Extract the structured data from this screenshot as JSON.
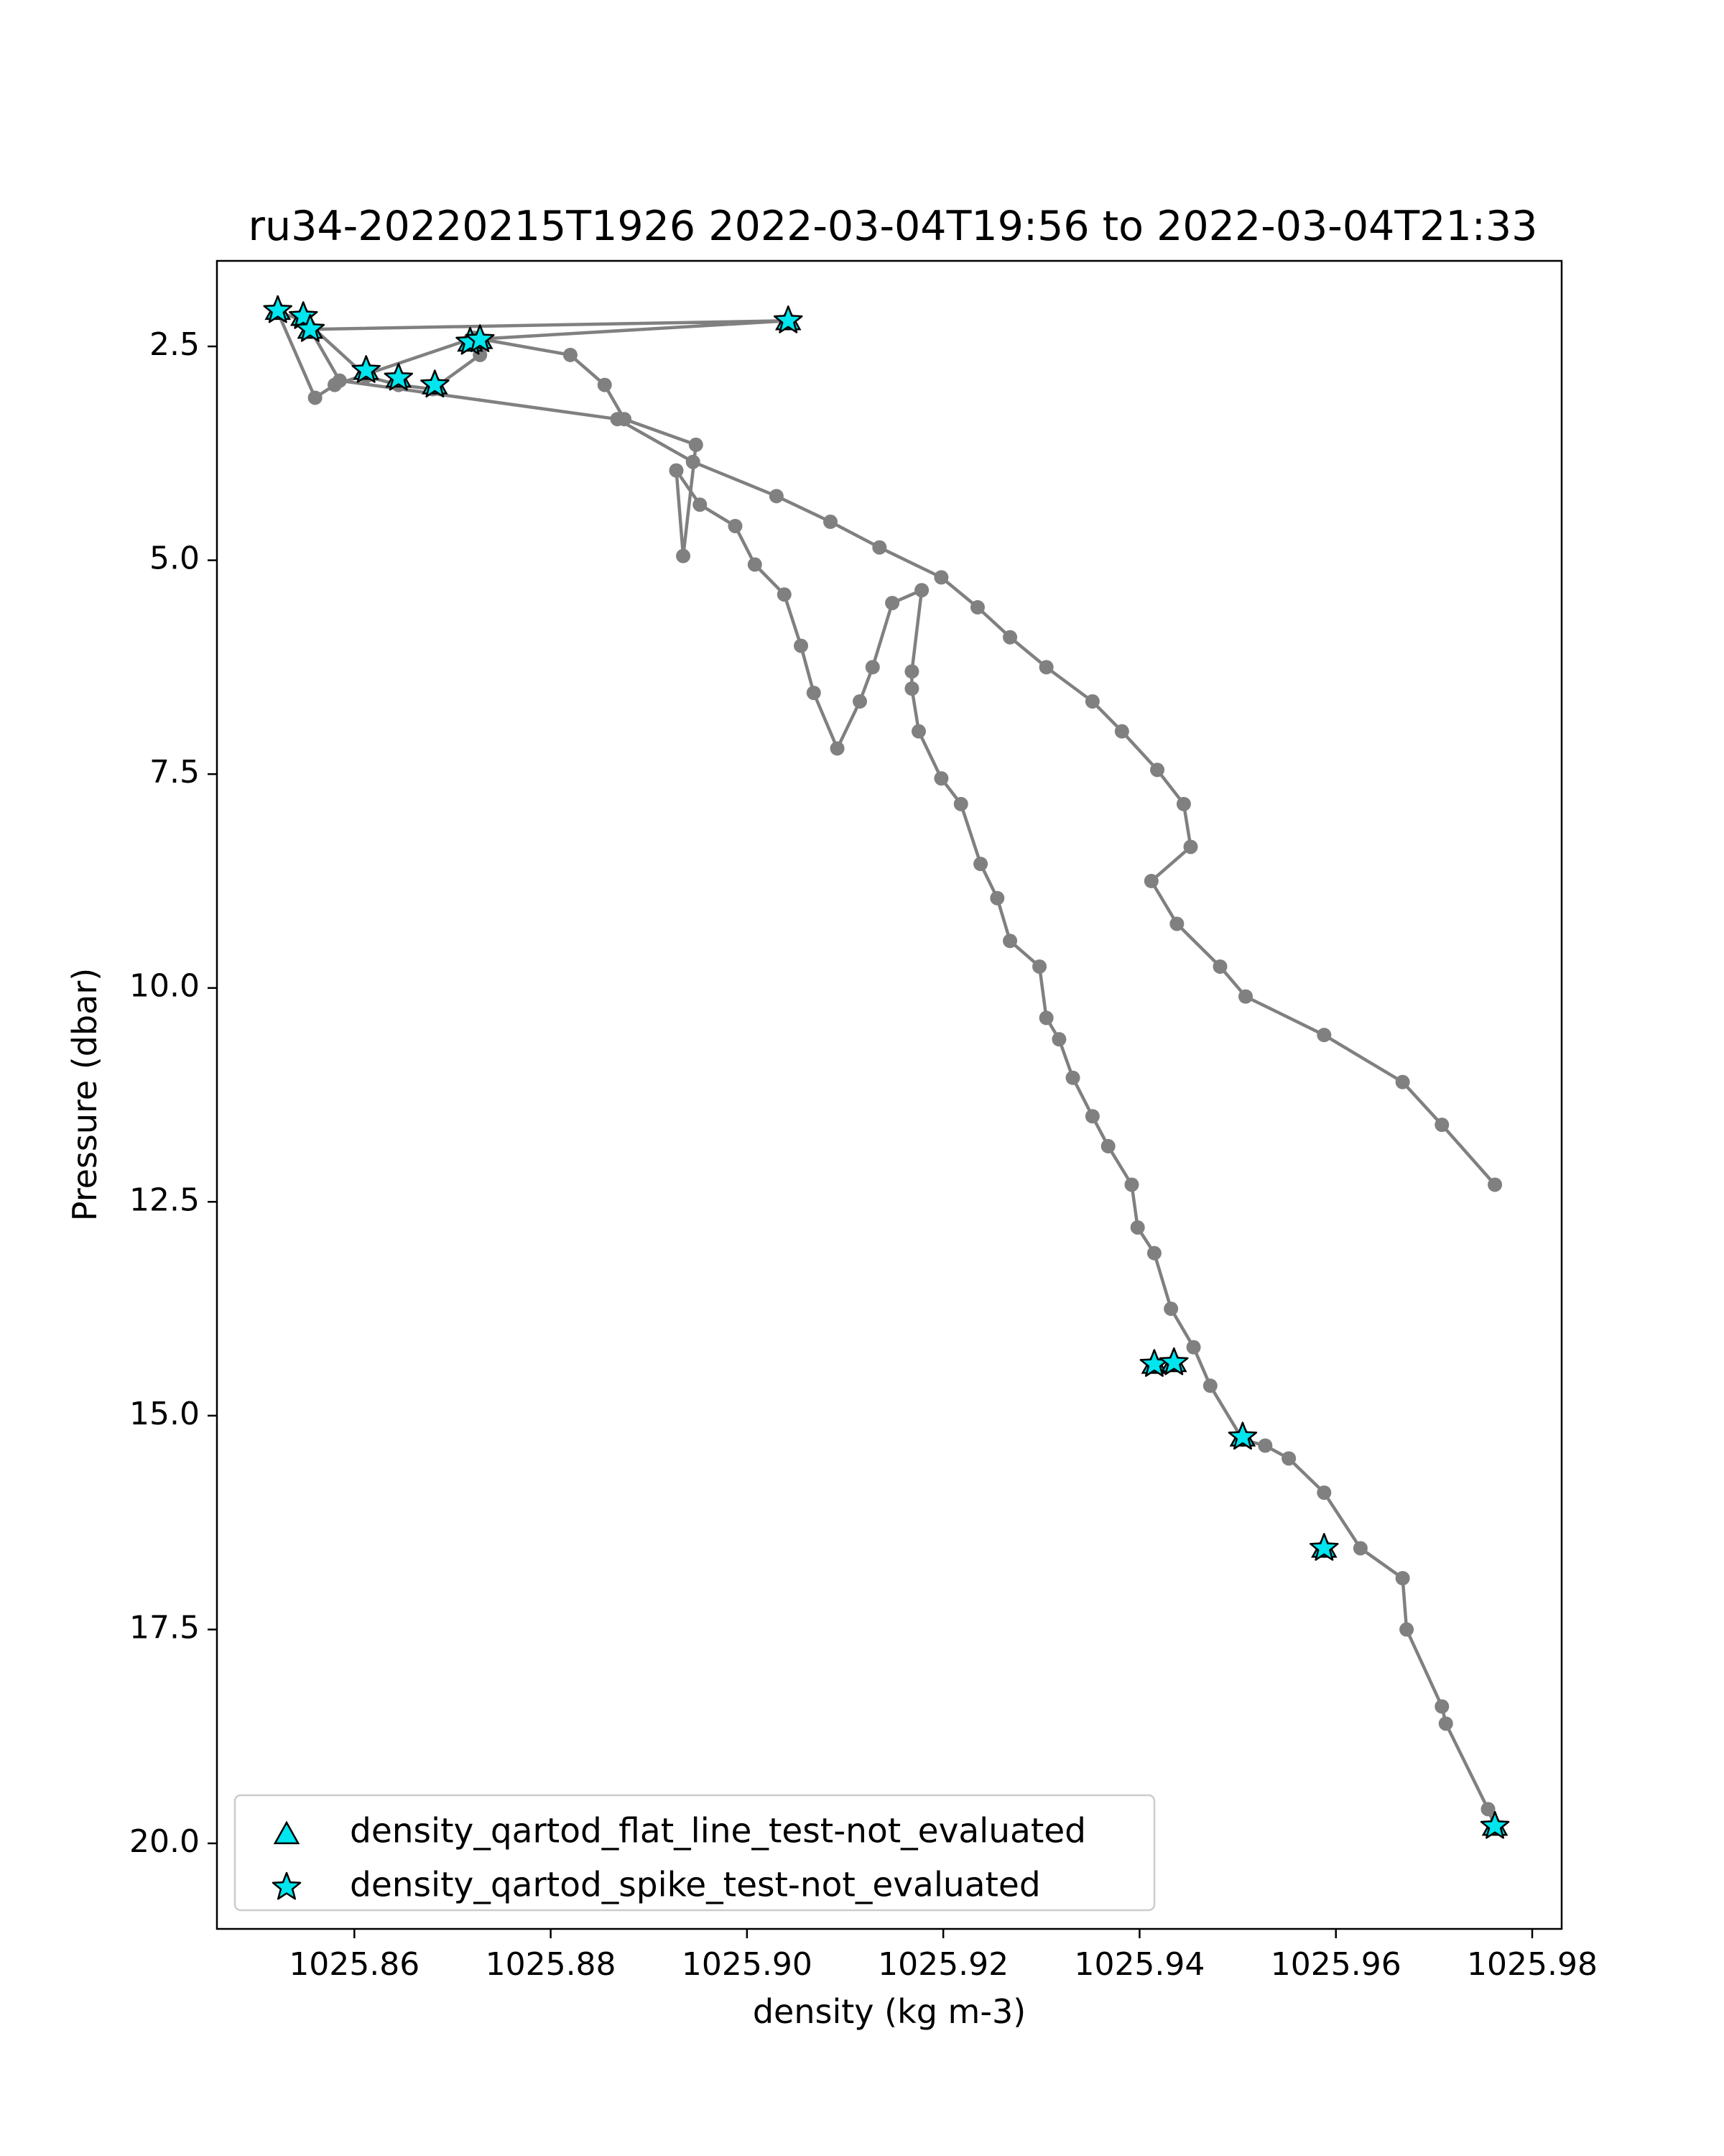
{
  "chart_data": {
    "type": "scatter",
    "title": "ru34-20220215T1926 2022-03-04T19:56 to 2022-03-04T21:33",
    "xlabel": "density (kg m-3)",
    "ylabel": "Pressure (dbar)",
    "xlim": [
      1025.846,
      1025.983
    ],
    "ylim": [
      21.0,
      1.5
    ],
    "y_inverted": true,
    "grid": false,
    "legend_position": "lower-left",
    "x_ticks": [
      1025.86,
      1025.88,
      1025.9,
      1025.92,
      1025.94,
      1025.96,
      1025.98
    ],
    "x_tick_labels": [
      "1025.86",
      "1025.88",
      "1025.90",
      "1025.92",
      "1025.94",
      "1025.96",
      "1025.98"
    ],
    "y_ticks": [
      2.5,
      5.0,
      7.5,
      10.0,
      12.5,
      15.0,
      17.5,
      20.0
    ],
    "y_tick_labels": [
      "2.5",
      "5.0",
      "7.5",
      "10.0",
      "12.5",
      "15.0",
      "17.5",
      "20.0"
    ],
    "colors": {
      "profile_line": "#808080",
      "profile_point": "#808080",
      "marker_fill": "#00e5ee",
      "marker_edge": "#000000"
    },
    "profile": {
      "x": [
        1025.9762,
        1025.9755,
        1025.9712,
        1025.9708,
        1025.9672,
        1025.9668,
        1025.9625,
        1025.9588,
        1025.9552,
        1025.9528,
        1025.9505,
        1025.9472,
        1025.9455,
        1025.9432,
        1025.9415,
        1025.9398,
        1025.9392,
        1025.9368,
        1025.9352,
        1025.9332,
        1025.9318,
        1025.9305,
        1025.9298,
        1025.9268,
        1025.9255,
        1025.9238,
        1025.9218,
        1025.9198,
        1025.9175,
        1025.9168,
        1025.9168,
        1025.9178,
        1025.9148,
        1025.9128,
        1025.9115,
        1025.9092,
        1025.9068,
        1025.9055,
        1025.9038,
        1025.9008,
        1025.8988,
        1025.8952,
        1025.8928,
        1025.8935,
        1025.8948,
        1025.8875,
        1025.8855,
        1025.882,
        1025.8722,
        1025.858,
        1025.856,
        1025.8522,
        1025.855,
        1025.8612,
        1025.8645,
        1025.868,
        1025.8728,
        1025.8718,
        1025.9042,
        1025.8555,
        1025.8585,
        1025.8868,
        1025.8945,
        1025.903,
        1025.9085,
        1025.9135,
        1025.9198,
        1025.9235,
        1025.9268,
        1025.9305,
        1025.9352,
        1025.9382,
        1025.9418,
        1025.9445,
        1025.9452,
        1025.9412,
        1025.9438,
        1025.9482,
        1025.9508,
        1025.9588,
        1025.9668,
        1025.9708,
        1025.9762
      ],
      "y": [
        19.8,
        19.6,
        18.6,
        18.4,
        17.5,
        16.9,
        16.55,
        15.9,
        15.5,
        15.35,
        15.28,
        14.65,
        14.2,
        13.75,
        13.1,
        12.8,
        12.3,
        11.85,
        11.5,
        11.05,
        10.6,
        10.35,
        9.75,
        9.45,
        8.95,
        8.55,
        7.85,
        7.55,
        7.0,
        6.5,
        6.3,
        5.35,
        5.5,
        6.25,
        6.65,
        7.2,
        6.55,
        6.0,
        5.4,
        5.05,
        4.6,
        4.35,
        3.95,
        4.95,
        3.65,
        3.35,
        2.95,
        2.6,
        2.4,
        2.95,
        3.1,
        2.1,
        2.2,
        2.85,
        2.95,
        3.0,
        2.6,
        2.42,
        2.2,
        2.3,
        2.9,
        3.35,
        3.85,
        4.25,
        4.55,
        4.85,
        5.2,
        5.55,
        5.9,
        6.25,
        6.65,
        7.0,
        7.45,
        7.85,
        8.35,
        8.75,
        9.25,
        9.75,
        10.1,
        10.55,
        11.1,
        11.6,
        12.3
      ]
    },
    "qartod_flags": [
      {
        "test": "flat_line",
        "status": "not_evaluated",
        "x": [
          1025.8522,
          1025.8548,
          1025.8555,
          1025.8612,
          1025.8645,
          1025.8682,
          1025.8718,
          1025.8728,
          1025.9042,
          1025.9415,
          1025.9435,
          1025.9505,
          1025.9588,
          1025.9762
        ],
        "y": [
          2.08,
          2.15,
          2.3,
          2.78,
          2.87,
          2.95,
          2.45,
          2.42,
          2.2,
          14.4,
          14.38,
          15.25,
          16.55,
          19.8
        ]
      },
      {
        "test": "spike",
        "status": "not_evaluated",
        "x": [
          1025.8522,
          1025.8548,
          1025.8555,
          1025.8612,
          1025.8645,
          1025.8682,
          1025.8718,
          1025.8728,
          1025.9042,
          1025.9415,
          1025.9435,
          1025.9505,
          1025.9588,
          1025.9762
        ],
        "y": [
          2.08,
          2.15,
          2.3,
          2.78,
          2.87,
          2.95,
          2.45,
          2.42,
          2.2,
          14.4,
          14.38,
          15.25,
          16.55,
          19.8
        ]
      }
    ],
    "legend": [
      {
        "label": "density_qartod_flat_line_test-not_evaluated",
        "marker": "triangle"
      },
      {
        "label": "density_qartod_spike_test-not_evaluated",
        "marker": "star"
      }
    ]
  }
}
